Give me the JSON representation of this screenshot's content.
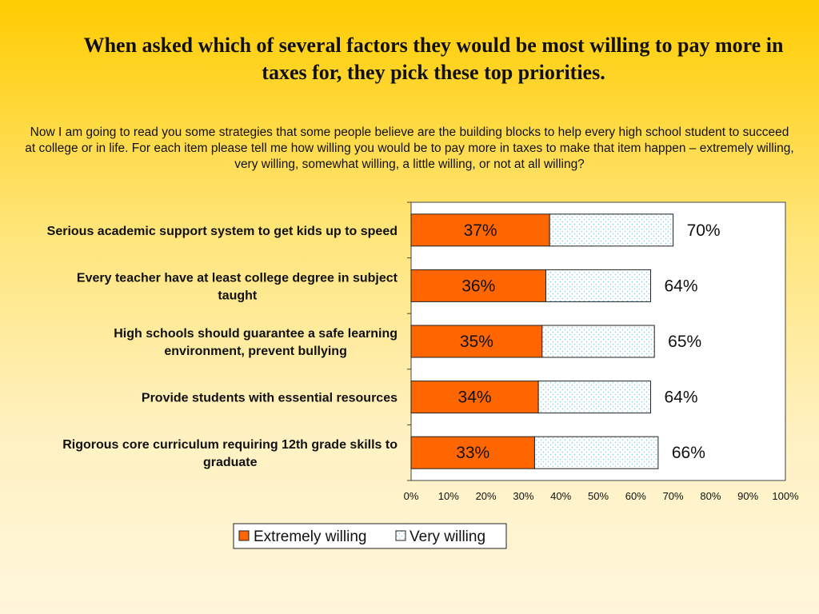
{
  "title": "When asked which of several factors they would be most willing to pay more in taxes for, they pick these top priorities.",
  "question": "Now I am going to read you some strategies that some people believe are the building blocks to help every high school student to succeed at college or in life.  For each item please tell me how willing you would be to pay more in taxes to make that item happen – extremely willing, very willing, somewhat willing, a little willing, or not at all willing?",
  "colors": {
    "extremely": "#ff6600",
    "very_fill": "#ffffff",
    "very_dots": "#7fd0e6",
    "border": "#222222"
  },
  "chart_data": {
    "type": "bar",
    "orientation": "horizontal",
    "stacked": true,
    "categories": [
      [
        "Serious academic support system to get kids up to speed"
      ],
      [
        "Every teacher have at least college degree in subject",
        "taught"
      ],
      [
        "High schools should guarantee a safe learning",
        "environment, prevent bullying"
      ],
      [
        "Provide students with essential resources"
      ],
      [
        "Rigorous core curriculum requiring 12th grade skills to",
        "graduate"
      ]
    ],
    "series": [
      {
        "name": "Extremely willing",
        "values": [
          37,
          36,
          35,
          34,
          33
        ],
        "labels": [
          "37%",
          "36%",
          "35%",
          "34%",
          "33%"
        ]
      },
      {
        "name": "Very willing",
        "values": [
          33,
          28,
          30,
          30,
          33
        ]
      }
    ],
    "totals": [
      70,
      64,
      65,
      64,
      66
    ],
    "total_labels": [
      "70%",
      "64%",
      "65%",
      "64%",
      "66%"
    ],
    "xlim": [
      0,
      100
    ],
    "xticks": [
      "0%",
      "10%",
      "20%",
      "30%",
      "40%",
      "50%",
      "60%",
      "70%",
      "80%",
      "90%",
      "100%"
    ],
    "legend_position": "bottom",
    "grid": false
  }
}
